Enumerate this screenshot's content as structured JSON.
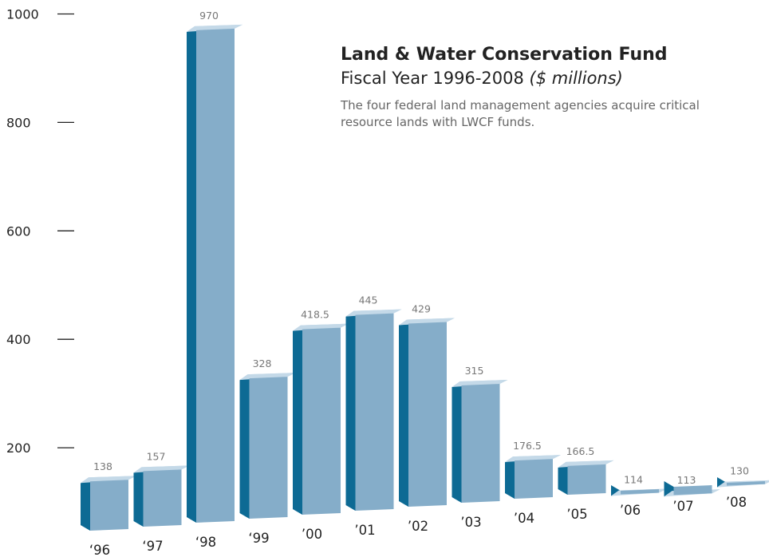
{
  "chart_data": {
    "type": "bar",
    "title": "Land & Water Conservation Fund",
    "subtitle": "Fiscal Year 1996-2008",
    "subtitle_unit": "($ millions)",
    "description": "The four federal land management agencies acquire critical resource lands with LWCF funds.",
    "categories": [
      "‘96",
      "‘97",
      "‘98",
      "‘99",
      "’00",
      "’01",
      "’02",
      "’03",
      "’04",
      "’05",
      "’06",
      "’07",
      "’08"
    ],
    "values": [
      138,
      157,
      970,
      328,
      418.5,
      445,
      429,
      315,
      176.5,
      166.5,
      114,
      113,
      130
    ],
    "value_labels": [
      "138",
      "157",
      "970",
      "328",
      "418.5",
      "445",
      "429",
      "315",
      "176.5",
      "166.5",
      "114",
      "113",
      "130"
    ],
    "y_ticks": [
      200,
      400,
      600,
      800,
      1000
    ],
    "y_tick_labels": [
      "200",
      "400",
      "600",
      "800",
      "1000"
    ],
    "ylim": [
      0,
      1000
    ],
    "xlabel": "",
    "ylabel": "",
    "grid": false,
    "style": "3d-bars",
    "colors": {
      "front": "#85adc9",
      "side": "#0d6a94",
      "top": "#c4d9e8",
      "value_label": "#777777",
      "text": "#222222"
    }
  }
}
